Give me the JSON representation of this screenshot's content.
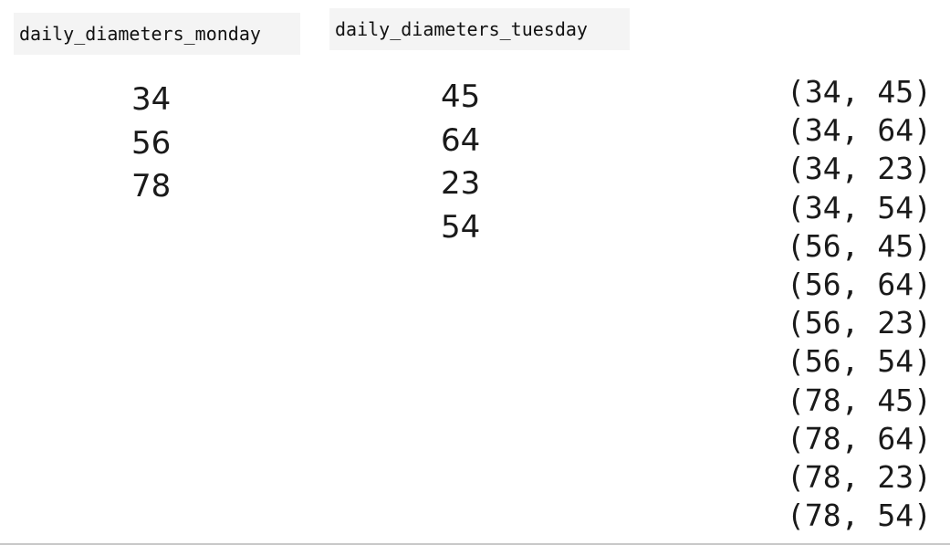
{
  "labels": {
    "monday": "daily_diameters_monday",
    "tuesday": "daily_diameters_tuesday"
  },
  "monday": [
    "34",
    "56",
    "78"
  ],
  "tuesday": [
    "45",
    "64",
    "23",
    "54"
  ],
  "pairs": [
    "(34, 45)",
    "(34, 64)",
    "(34, 23)",
    "(34, 54)",
    "(56, 45)",
    "(56, 64)",
    "(56, 23)",
    "(56, 54)",
    "(78, 45)",
    "(78, 64)",
    "(78, 23)",
    "(78, 54)"
  ]
}
